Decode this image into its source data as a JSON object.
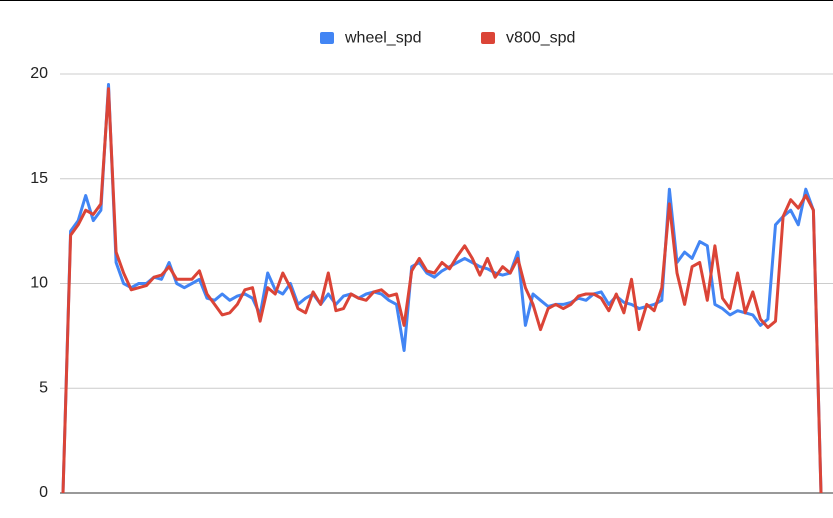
{
  "chart_data": {
    "type": "line",
    "categories": [
      null,
      null,
      null,
      null,
      null,
      null,
      null,
      null,
      null,
      null,
      null,
      null,
      null,
      null,
      null,
      null,
      null,
      null,
      null,
      null,
      null,
      null,
      null,
      null,
      null,
      null,
      null,
      null,
      null,
      null,
      null,
      null,
      null,
      null,
      null,
      null,
      null,
      null,
      null,
      null,
      null,
      null,
      null,
      null,
      null,
      null,
      null,
      null,
      null,
      null,
      null,
      null,
      null,
      null,
      null,
      null,
      null,
      null,
      null,
      null,
      null,
      null,
      null,
      null,
      null,
      null,
      null,
      null,
      null,
      null,
      null,
      null,
      null,
      null,
      null,
      null,
      null,
      null,
      null,
      null,
      null,
      null,
      null,
      null,
      null,
      null,
      null,
      null,
      null,
      null,
      null,
      null,
      null,
      null,
      null,
      null,
      null,
      null,
      null,
      null,
      null
    ],
    "series": [
      {
        "name": "wheel_spd",
        "color": "#4285f4",
        "values": [
          0,
          12.5,
          13,
          14.2,
          13,
          13.5,
          19.5,
          11,
          10,
          9.8,
          10,
          10,
          10.3,
          10.2,
          11,
          10,
          9.8,
          10,
          10.2,
          9.3,
          9.2,
          9.5,
          9.2,
          9.4,
          9.5,
          9.3,
          8.5,
          10.5,
          9.7,
          9.5,
          10,
          9,
          9.3,
          9.5,
          9,
          9.5,
          9,
          9.4,
          9.5,
          9.3,
          9.5,
          9.6,
          9.5,
          9.2,
          9,
          6.8,
          10.8,
          11,
          10.5,
          10.3,
          10.6,
          10.8,
          11,
          11.2,
          11,
          10.8,
          10.7,
          10.5,
          10.4,
          10.5,
          11.5,
          8,
          9.5,
          9.2,
          8.9,
          9,
          9,
          9.1,
          9.3,
          9.2,
          9.5,
          9.6,
          9,
          9.4,
          9.1,
          9,
          8.8,
          8.9,
          9,
          9.2,
          14.5,
          11,
          11.5,
          11.2,
          12,
          11.8,
          9,
          8.8,
          8.5,
          8.7,
          8.6,
          8.5,
          8,
          8.3,
          12.8,
          13.2,
          13.5,
          12.8,
          14.5,
          13.5,
          0
        ]
      },
      {
        "name": "v800_spd",
        "color": "#db4437",
        "values": [
          0,
          12.3,
          12.8,
          13.5,
          13.3,
          13.8,
          19.3,
          11.5,
          10.5,
          9.7,
          9.8,
          9.9,
          10.3,
          10.4,
          10.8,
          10.2,
          10.2,
          10.2,
          10.6,
          9.5,
          9,
          8.5,
          8.6,
          9,
          9.7,
          9.8,
          8.2,
          9.8,
          9.5,
          10.5,
          9.8,
          8.8,
          8.6,
          9.6,
          9,
          10.5,
          8.7,
          8.8,
          9.5,
          9.3,
          9.2,
          9.6,
          9.7,
          9.4,
          9.5,
          8,
          10.6,
          11.2,
          10.6,
          10.5,
          11,
          10.7,
          11.3,
          11.8,
          11.2,
          10.4,
          11.2,
          10.3,
          10.8,
          10.5,
          11.2,
          9.8,
          9,
          7.8,
          8.8,
          9,
          8.8,
          9,
          9.4,
          9.5,
          9.5,
          9.3,
          8.7,
          9.5,
          8.6,
          10.2,
          7.8,
          9,
          8.7,
          9.8,
          13.8,
          10.5,
          9,
          10.8,
          11,
          9.2,
          11.8,
          9.3,
          8.8,
          10.5,
          8.6,
          9.6,
          8.3,
          7.9,
          8.2,
          13.2,
          14,
          13.6,
          14.2,
          13.5,
          0
        ]
      }
    ],
    "ylim": [
      0,
      20
    ],
    "yticks": [
      0,
      5,
      10,
      15,
      20
    ],
    "grid": true,
    "legend": "top"
  }
}
